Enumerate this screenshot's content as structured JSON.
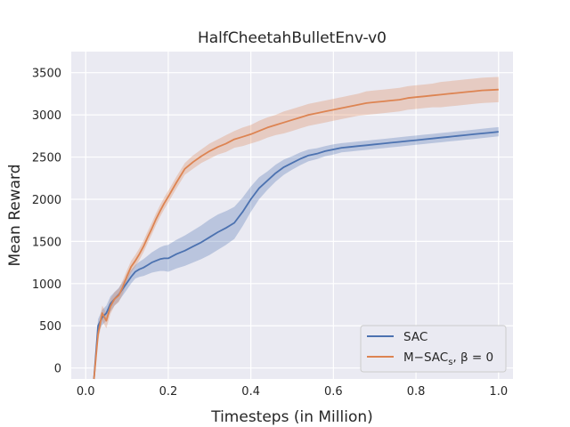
{
  "chart_data": {
    "type": "line",
    "title": "HalfCheetahBulletEnv-v0",
    "xlabel": "Timesteps (in Million)",
    "ylabel": "Mean Reward",
    "xlim": [
      -0.035,
      1.035
    ],
    "ylim": [
      -130,
      3750
    ],
    "xticks": [
      0.0,
      0.2,
      0.4,
      0.6,
      0.8,
      1.0
    ],
    "xtick_labels": [
      "0.0",
      "0.2",
      "0.4",
      "0.6",
      "0.8",
      "1.0"
    ],
    "yticks": [
      0,
      500,
      1000,
      1500,
      2000,
      2500,
      3000,
      3500
    ],
    "ytick_labels": [
      "0",
      "500",
      "1000",
      "1500",
      "2000",
      "2500",
      "3000",
      "3500"
    ],
    "grid": true,
    "legend_position": "lower-right",
    "colors": {
      "background": "#eaeaf2",
      "grid": "#ffffff",
      "sac": "#4c72b0",
      "msac": "#dd8452"
    },
    "x": [
      0.02,
      0.03,
      0.04,
      0.05,
      0.06,
      0.07,
      0.08,
      0.09,
      0.1,
      0.11,
      0.12,
      0.13,
      0.14,
      0.15,
      0.16,
      0.17,
      0.18,
      0.19,
      0.2,
      0.22,
      0.24,
      0.26,
      0.28,
      0.3,
      0.32,
      0.34,
      0.36,
      0.38,
      0.4,
      0.42,
      0.44,
      0.46,
      0.48,
      0.5,
      0.52,
      0.54,
      0.56,
      0.58,
      0.6,
      0.62,
      0.64,
      0.66,
      0.68,
      0.7,
      0.72,
      0.74,
      0.76,
      0.78,
      0.8,
      0.82,
      0.84,
      0.86,
      0.88,
      0.9,
      0.92,
      0.94,
      0.96,
      0.98,
      1.0
    ],
    "series": [
      {
        "name": "SAC",
        "label_parts": [
          "SAC"
        ],
        "values": [
          -130,
          500,
          600,
          650,
          760,
          820,
          870,
          940,
          1010,
          1080,
          1140,
          1170,
          1190,
          1220,
          1250,
          1270,
          1290,
          1300,
          1300,
          1350,
          1390,
          1440,
          1490,
          1550,
          1610,
          1660,
          1720,
          1850,
          2000,
          2130,
          2220,
          2310,
          2380,
          2430,
          2480,
          2520,
          2540,
          2570,
          2590,
          2610,
          2620,
          2630,
          2640,
          2650,
          2660,
          2670,
          2680,
          2690,
          2700,
          2710,
          2720,
          2730,
          2740,
          2750,
          2760,
          2770,
          2780,
          2790,
          2800
        ],
        "band": [
          60,
          80,
          90,
          90,
          90,
          80,
          80,
          80,
          80,
          80,
          80,
          90,
          100,
          110,
          120,
          130,
          140,
          150,
          160,
          170,
          180,
          190,
          200,
          210,
          210,
          200,
          190,
          170,
          150,
          130,
          110,
          100,
          90,
          80,
          75,
          70,
          65,
          60,
          60,
          55,
          55,
          55,
          55,
          55,
          55,
          55,
          55,
          55,
          55,
          55,
          55,
          55,
          55,
          55,
          55,
          55,
          55,
          55,
          55
        ]
      },
      {
        "name": "M−SACs, β = 0",
        "label_parts": [
          "M−SAC",
          "s",
          ", β = 0"
        ],
        "values": [
          -130,
          400,
          650,
          560,
          730,
          820,
          860,
          960,
          1090,
          1200,
          1270,
          1350,
          1440,
          1550,
          1650,
          1760,
          1860,
          1950,
          2030,
          2200,
          2360,
          2440,
          2510,
          2570,
          2620,
          2660,
          2710,
          2740,
          2770,
          2810,
          2850,
          2880,
          2910,
          2940,
          2970,
          3000,
          3020,
          3040,
          3060,
          3080,
          3100,
          3120,
          3140,
          3150,
          3160,
          3170,
          3180,
          3200,
          3210,
          3220,
          3230,
          3240,
          3250,
          3260,
          3270,
          3280,
          3290,
          3295,
          3300
        ],
        "band": [
          60,
          80,
          90,
          90,
          90,
          80,
          80,
          80,
          70,
          70,
          70,
          70,
          70,
          70,
          70,
          70,
          70,
          70,
          70,
          70,
          70,
          80,
          80,
          90,
          90,
          100,
          100,
          110,
          110,
          120,
          120,
          120,
          130,
          130,
          130,
          130,
          130,
          130,
          130,
          130,
          130,
          130,
          140,
          140,
          140,
          140,
          140,
          140,
          140,
          140,
          140,
          150,
          150,
          150,
          150,
          150,
          150,
          150,
          150
        ]
      }
    ]
  }
}
